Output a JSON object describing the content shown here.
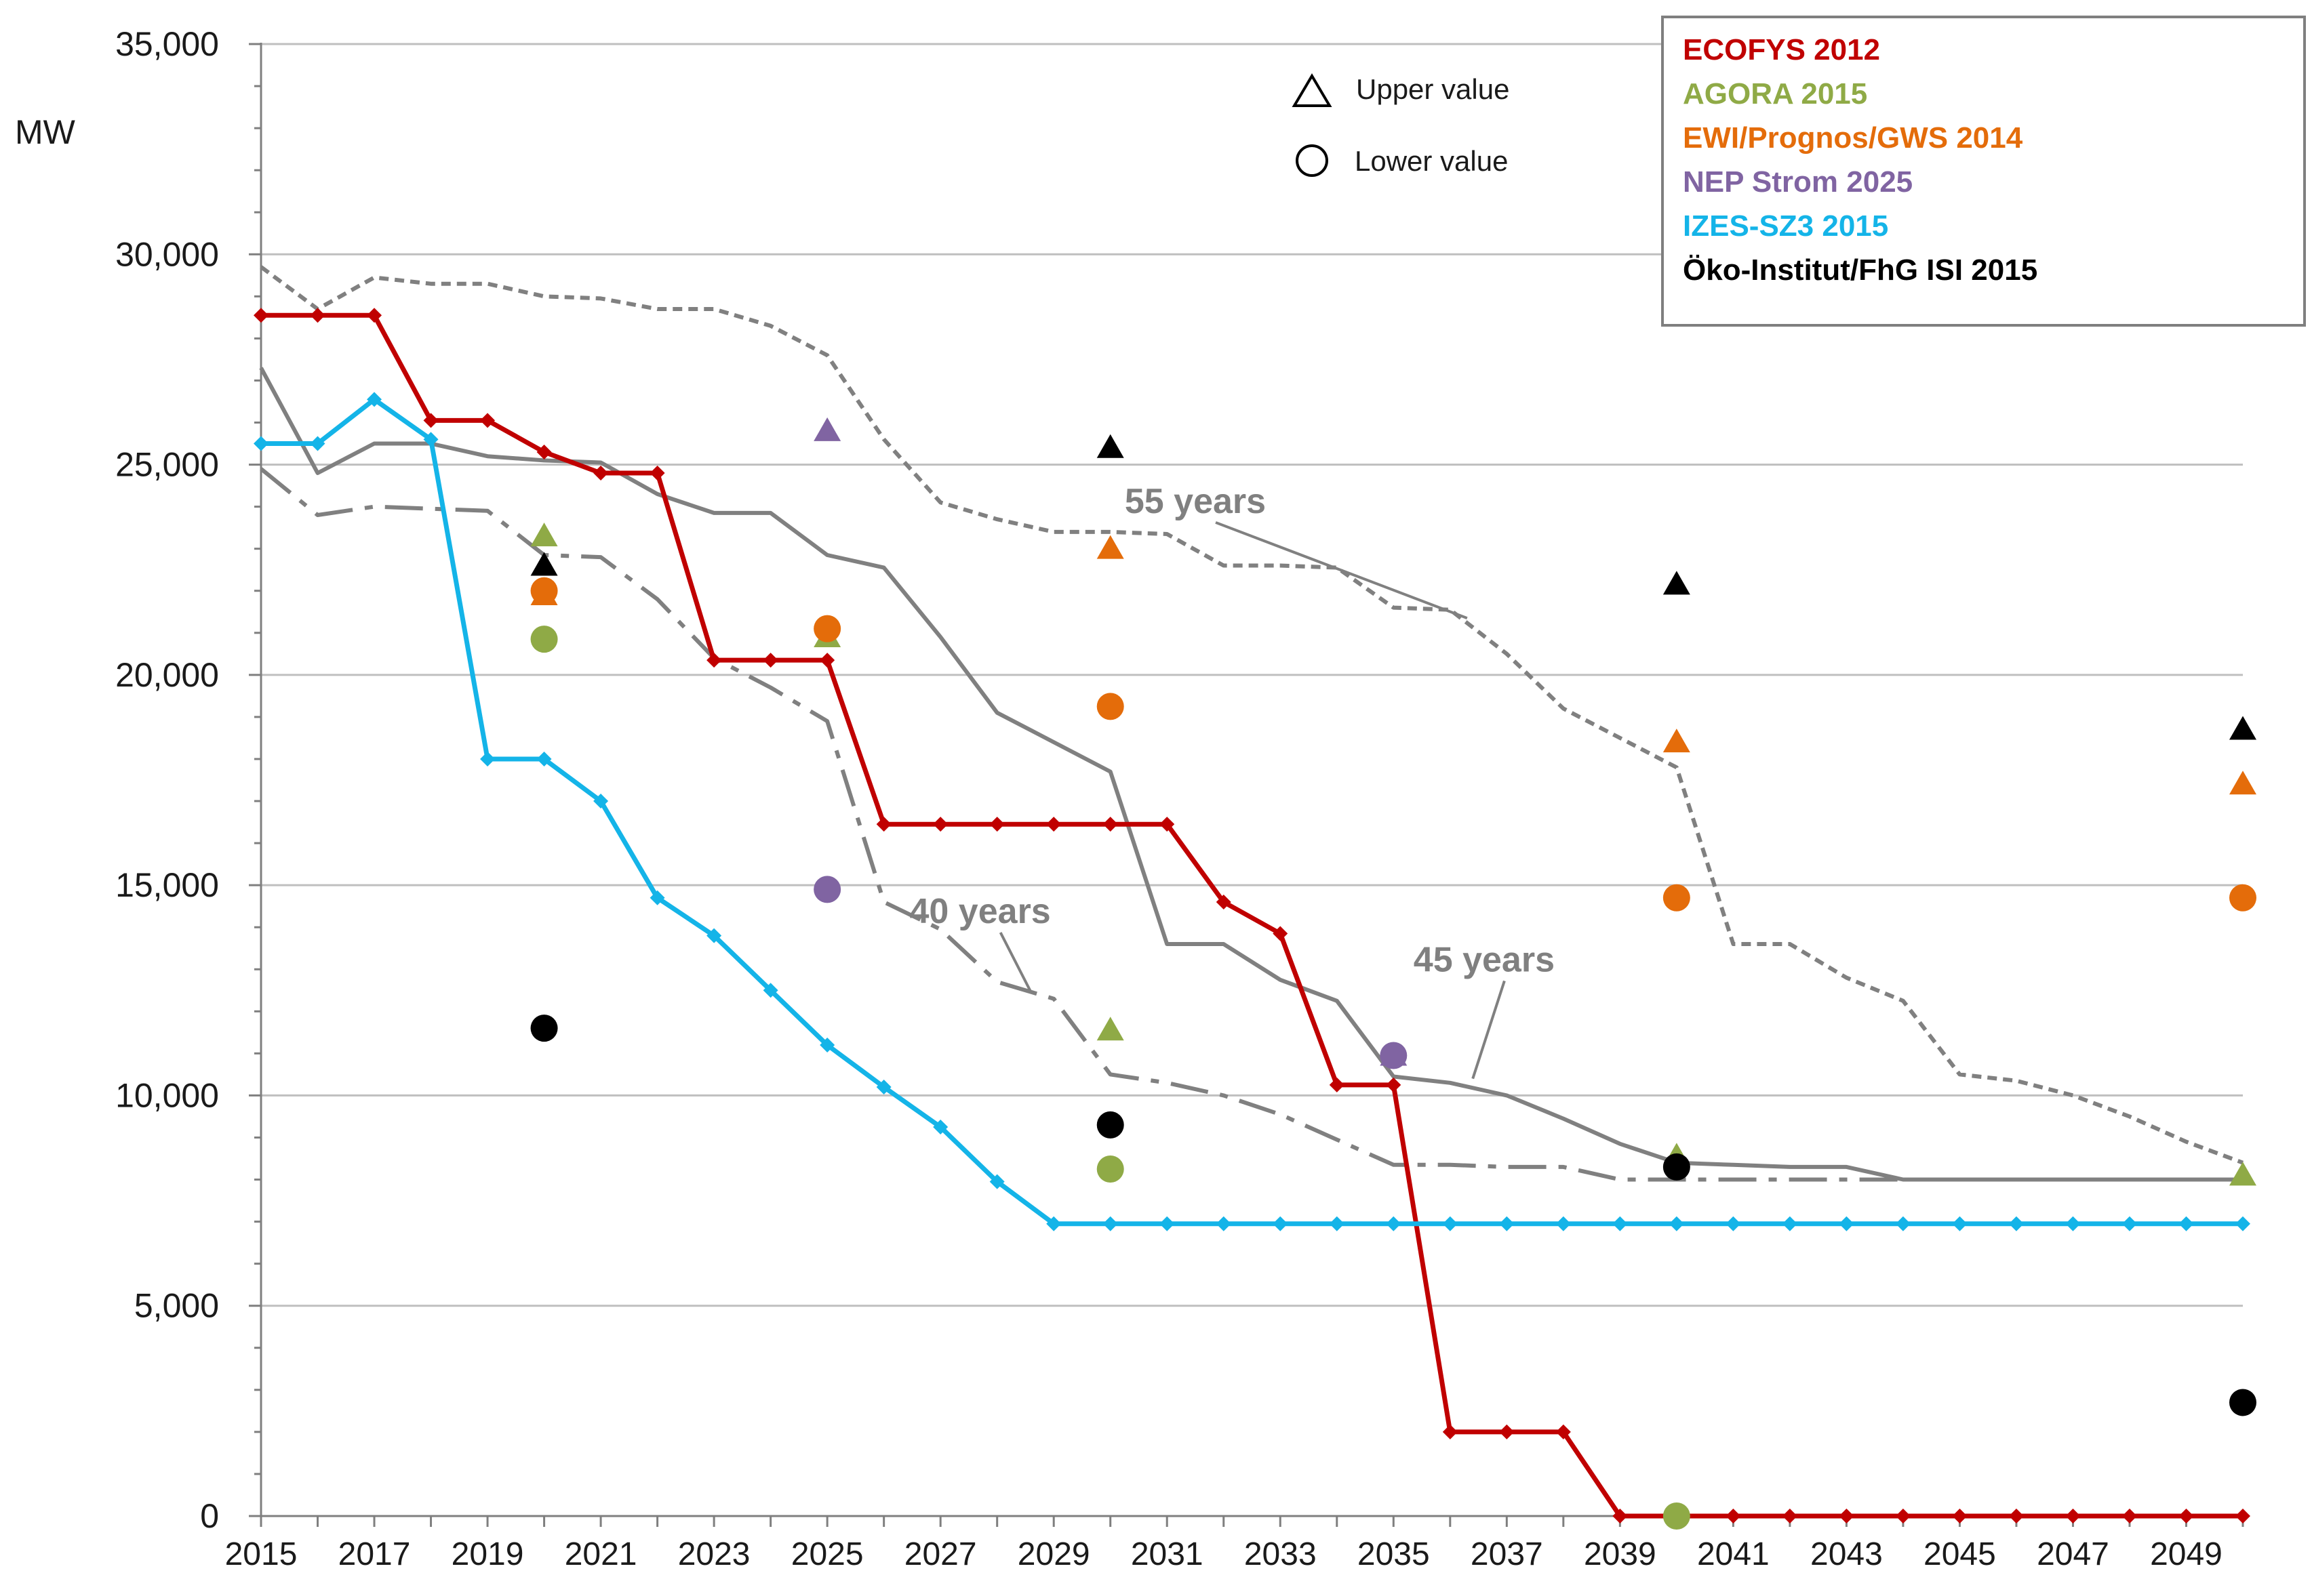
{
  "chart_data": {
    "type": "line",
    "ylabel": "MW",
    "ylim": [
      0,
      35000
    ],
    "yticks": [
      0,
      5000,
      10000,
      15000,
      20000,
      25000,
      30000,
      35000
    ],
    "ytick_labels": [
      "0",
      "5,000",
      "10,000",
      "15,000",
      "20,000",
      "25,000",
      "30,000",
      "35,000"
    ],
    "xlim": [
      2015,
      2050
    ],
    "xtick_labels": [
      "2015",
      "2017",
      "2019",
      "2021",
      "2023",
      "2025",
      "2027",
      "2029",
      "2031",
      "2033",
      "2035",
      "2037",
      "2039",
      "2041",
      "2043",
      "2045",
      "2047",
      "2049"
    ],
    "grid": true,
    "colors": {
      "ecofys": "#c00000",
      "agora": "#8faa46",
      "ewi": "#e46c0a",
      "nep": "#8064a2",
      "izes": "#14b4e8",
      "oeko": "#000000",
      "lifetime": "#808080",
      "grid": "#bfbfbf",
      "axis": "#7f7f7f"
    },
    "series": [
      {
        "name": "ECOFYS 2012",
        "key": "ecofys",
        "x": [
          2015,
          2016,
          2017,
          2018,
          2019,
          2020,
          2021,
          2022,
          2023,
          2024,
          2025,
          2026,
          2027,
          2028,
          2029,
          2030,
          2031,
          2032,
          2033,
          2034,
          2035,
          2036,
          2037,
          2038,
          2039,
          2040,
          2041,
          2042,
          2043,
          2044,
          2045,
          2046,
          2047,
          2048,
          2049,
          2050
        ],
        "values": [
          28550,
          28550,
          28550,
          26050,
          26050,
          25300,
          24800,
          24800,
          20350,
          20350,
          20350,
          16450,
          16450,
          16450,
          16450,
          16450,
          16450,
          14600,
          13850,
          10250,
          10250,
          2000,
          2000,
          2000,
          0,
          0,
          0,
          0,
          0,
          0,
          0,
          0,
          0,
          0,
          0,
          0
        ]
      },
      {
        "name": "IZES-SZ3 2015",
        "key": "izes",
        "x": [
          2015,
          2016,
          2017,
          2018,
          2019,
          2020,
          2021,
          2022,
          2023,
          2024,
          2025,
          2026,
          2027,
          2028,
          2029,
          2030,
          2031,
          2032,
          2033,
          2034,
          2035,
          2036,
          2037,
          2038,
          2039,
          2040,
          2041,
          2042,
          2043,
          2044,
          2045,
          2046,
          2047,
          2048,
          2049,
          2050
        ],
        "values": [
          25500,
          25500,
          26550,
          25600,
          18000,
          18000,
          17000,
          14700,
          13800,
          12500,
          11200,
          10200,
          9250,
          7950,
          6950,
          6950,
          6950,
          6950,
          6950,
          6950,
          6950,
          6950,
          6950,
          6950,
          6950,
          6950,
          6950,
          6950,
          6950,
          6950,
          6950,
          6950,
          6950,
          6950,
          6950,
          6950
        ]
      },
      {
        "name": "55 years",
        "key": "life55",
        "x": [
          2015,
          2016,
          2017,
          2018,
          2019,
          2020,
          2021,
          2022,
          2023,
          2024,
          2025,
          2026,
          2027,
          2028,
          2029,
          2030,
          2031,
          2032,
          2033,
          2034,
          2035,
          2036,
          2037,
          2038,
          2039,
          2040,
          2041,
          2042,
          2043,
          2044,
          2045,
          2046,
          2047,
          2048,
          2049,
          2050
        ],
        "values": [
          29700,
          28700,
          29450,
          29300,
          29300,
          29000,
          28950,
          28700,
          28700,
          28300,
          27600,
          25600,
          24100,
          23700,
          23400,
          23400,
          23350,
          22600,
          22600,
          22550,
          21600,
          21550,
          20500,
          19200,
          18500,
          17800,
          13600,
          13600,
          12800,
          12250,
          10500,
          10350,
          10000,
          9500,
          8900,
          8400
        ]
      },
      {
        "name": "45 years",
        "key": "life45",
        "x": [
          2015,
          2016,
          2017,
          2018,
          2019,
          2020,
          2021,
          2022,
          2023,
          2024,
          2025,
          2026,
          2027,
          2028,
          2029,
          2030,
          2031,
          2032,
          2033,
          2034,
          2035,
          2036,
          2037,
          2038,
          2039,
          2040,
          2041,
          2042,
          2043,
          2044,
          2045,
          2046,
          2047,
          2048,
          2049,
          2050
        ],
        "values": [
          27300,
          24800,
          25500,
          25500,
          25200,
          25100,
          25050,
          24300,
          23850,
          23850,
          22850,
          22550,
          20900,
          19100,
          18400,
          17700,
          13600,
          13600,
          12750,
          12250,
          10450,
          10300,
          10000,
          9450,
          8850,
          8400,
          8350,
          8300,
          8300,
          8000,
          8000,
          8000,
          8000,
          8000,
          8000,
          8000
        ]
      },
      {
        "name": "40 years",
        "key": "life40",
        "x": [
          2015,
          2016,
          2017,
          2018,
          2019,
          2020,
          2021,
          2022,
          2023,
          2024,
          2025,
          2026,
          2027,
          2028,
          2029,
          2030,
          2031,
          2032,
          2033,
          2034,
          2035,
          2036,
          2037,
          2038,
          2039,
          2040,
          2041,
          2042,
          2043,
          2044,
          2045,
          2046,
          2047,
          2048,
          2049,
          2050
        ],
        "values": [
          24900,
          23800,
          24000,
          23950,
          23900,
          22850,
          22800,
          21800,
          20400,
          19700,
          18900,
          14600,
          13950,
          12700,
          12300,
          10500,
          10300,
          10000,
          9550,
          8950,
          8350,
          8350,
          8300,
          8300,
          8000,
          8000,
          8000,
          8000,
          8000,
          8000,
          8000,
          8000,
          8000,
          8000,
          8000,
          8000
        ]
      }
    ],
    "scenario_points": [
      {
        "source": "Öko-Institut/FhG ISI 2015",
        "key": "oeko",
        "kind": "upper",
        "x": 2020,
        "value": 22600
      },
      {
        "source": "AGORA 2015",
        "key": "agora",
        "kind": "upper",
        "x": 2020,
        "value": 23300
      },
      {
        "source": "EWI/Prognos/GWS 2014",
        "key": "ewi",
        "kind": "upper",
        "x": 2020,
        "value": 21900
      },
      {
        "source": "EWI/Prognos/GWS 2014",
        "key": "ewi",
        "kind": "lower",
        "x": 2020,
        "value": 22000
      },
      {
        "source": "AGORA 2015",
        "key": "agora",
        "kind": "lower",
        "x": 2020,
        "value": 20850
      },
      {
        "source": "Öko-Institut/FhG ISI 2015",
        "key": "oeko",
        "kind": "lower",
        "x": 2020,
        "value": 11600
      },
      {
        "source": "NEP Strom 2025",
        "key": "nep",
        "kind": "upper",
        "x": 2025,
        "value": 25800
      },
      {
        "source": "AGORA 2015",
        "key": "agora",
        "kind": "upper",
        "x": 2025,
        "value": 20900
      },
      {
        "source": "EWI/Prognos/GWS 2014",
        "key": "ewi",
        "kind": "lower",
        "x": 2025,
        "value": 21100
      },
      {
        "source": "NEP Strom 2025",
        "key": "nep",
        "kind": "lower",
        "x": 2025,
        "value": 14900
      },
      {
        "source": "Öko-Institut/FhG ISI 2015",
        "key": "oeko",
        "kind": "upper",
        "x": 2030,
        "value": 25400
      },
      {
        "source": "EWI/Prognos/GWS 2014",
        "key": "ewi",
        "kind": "upper",
        "x": 2030,
        "value": 23000
      },
      {
        "source": "EWI/Prognos/GWS 2014",
        "key": "ewi",
        "kind": "lower",
        "x": 2030,
        "value": 19250
      },
      {
        "source": "AGORA 2015",
        "key": "agora",
        "kind": "upper",
        "x": 2030,
        "value": 11550
      },
      {
        "source": "Öko-Institut/FhG ISI 2015",
        "key": "oeko",
        "kind": "lower",
        "x": 2030,
        "value": 9300
      },
      {
        "source": "AGORA 2015",
        "key": "agora",
        "kind": "lower",
        "x": 2030,
        "value": 8250
      },
      {
        "source": "NEP Strom 2025",
        "key": "nep",
        "kind": "upper",
        "x": 2035,
        "value": 10950
      },
      {
        "source": "NEP Strom 2025",
        "key": "nep",
        "kind": "lower",
        "x": 2035,
        "value": 10950
      },
      {
        "source": "Öko-Institut/FhG ISI 2015",
        "key": "oeko",
        "kind": "upper",
        "x": 2040,
        "value": 22150
      },
      {
        "source": "EWI/Prognos/GWS 2014",
        "key": "ewi",
        "kind": "upper",
        "x": 2040,
        "value": 18400
      },
      {
        "source": "EWI/Prognos/GWS 2014",
        "key": "ewi",
        "kind": "lower",
        "x": 2040,
        "value": 14700
      },
      {
        "source": "AGORA 2015",
        "key": "agora",
        "kind": "upper",
        "x": 2040,
        "value": 8550
      },
      {
        "source": "Öko-Institut/FhG ISI 2015",
        "key": "oeko",
        "kind": "lower",
        "x": 2040,
        "value": 8300
      },
      {
        "source": "AGORA 2015",
        "key": "agora",
        "kind": "lower",
        "x": 2040,
        "value": 0
      },
      {
        "source": "Öko-Institut/FhG ISI 2015",
        "key": "oeko",
        "kind": "upper",
        "x": 2050,
        "value": 18700
      },
      {
        "source": "EWI/Prognos/GWS 2014",
        "key": "ewi",
        "kind": "upper",
        "x": 2050,
        "value": 17400
      },
      {
        "source": "EWI/Prognos/GWS 2014",
        "key": "ewi",
        "kind": "lower",
        "x": 2050,
        "value": 14700
      },
      {
        "source": "AGORA 2015",
        "key": "agora",
        "kind": "upper",
        "x": 2050,
        "value": 8100
      },
      {
        "source": "Öko-Institut/FhG ISI 2015",
        "key": "oeko",
        "kind": "lower",
        "x": 2050,
        "value": 2700
      }
    ],
    "legend": [
      {
        "label": "ECOFYS 2012",
        "key": "ecofys"
      },
      {
        "label": "AGORA 2015",
        "key": "agora"
      },
      {
        "label": "EWI/Prognos/GWS  2014",
        "key": "ewi"
      },
      {
        "label": "NEP Strom 2025",
        "key": "nep"
      },
      {
        "label": "IZES-SZ3 2015",
        "key": "izes"
      },
      {
        "label": "Öko-Institut/FhG ISI 2015",
        "key": "oeko"
      }
    ],
    "marker_legend": {
      "upper": "Upper value",
      "lower": "Lower value"
    },
    "annotations": [
      {
        "text": "55 years",
        "key": "life55",
        "x": 2031.5,
        "value": 23850,
        "anchor_x": 2036.3,
        "anchor_value": 21350
      },
      {
        "text": "40 years",
        "key": "life40",
        "x": 2027.7,
        "value": 14100,
        "anchor_x": 2028.6,
        "anchor_value": 12450
      },
      {
        "text": "45 years",
        "key": "life45",
        "x": 2036.6,
        "value": 12950,
        "anchor_x": 2036.4,
        "anchor_value": 10400
      }
    ]
  }
}
